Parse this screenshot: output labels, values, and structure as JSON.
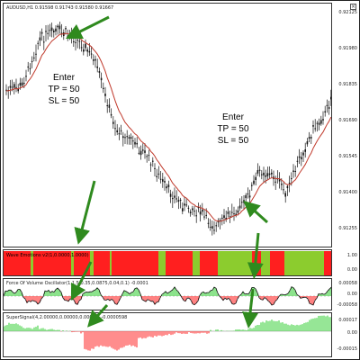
{
  "main_chart": {
    "title": "AUDUSD,H1  0.91598 0.91743 0.91580 0.91667",
    "price_ticks": [
      "0.92125",
      "0.91980",
      "0.91835",
      "0.91690",
      "0.91545",
      "0.91400",
      "0.91255"
    ],
    "annotations": [
      {
        "lines": [
          "Enter",
          "TP = 50",
          "SL = 50"
        ]
      },
      {
        "lines": [
          "Enter",
          "TP = 50",
          "SL = 50"
        ]
      }
    ]
  },
  "wave_pane": {
    "title": "Wave Emotions v2(1,0.0000,1.0000)",
    "ticks": [
      "1.00",
      "0.00"
    ]
  },
  "osc_pane": {
    "title": "Force Of Volume Oscillator(1,1.5,0.35,0.0875,0.04,0.1) -0.0001",
    "ticks": [
      "0.00058",
      "0.00",
      "-0.00058"
    ]
  },
  "hist_pane": {
    "title": "SuperSignal(4,2.00000,0.00000,0.00000) -0.0000598",
    "ticks": [
      "0.00017",
      "0.00",
      "-0.00015"
    ]
  },
  "colors": {
    "candle": "#111111",
    "ma": "#c0392b",
    "arrow": "#2f8a1e",
    "wave_green": "#8ccc2e",
    "wave_red": "#ff1f1f",
    "hist_green": "#3fd03f",
    "hist_red": "#ff3030"
  }
}
